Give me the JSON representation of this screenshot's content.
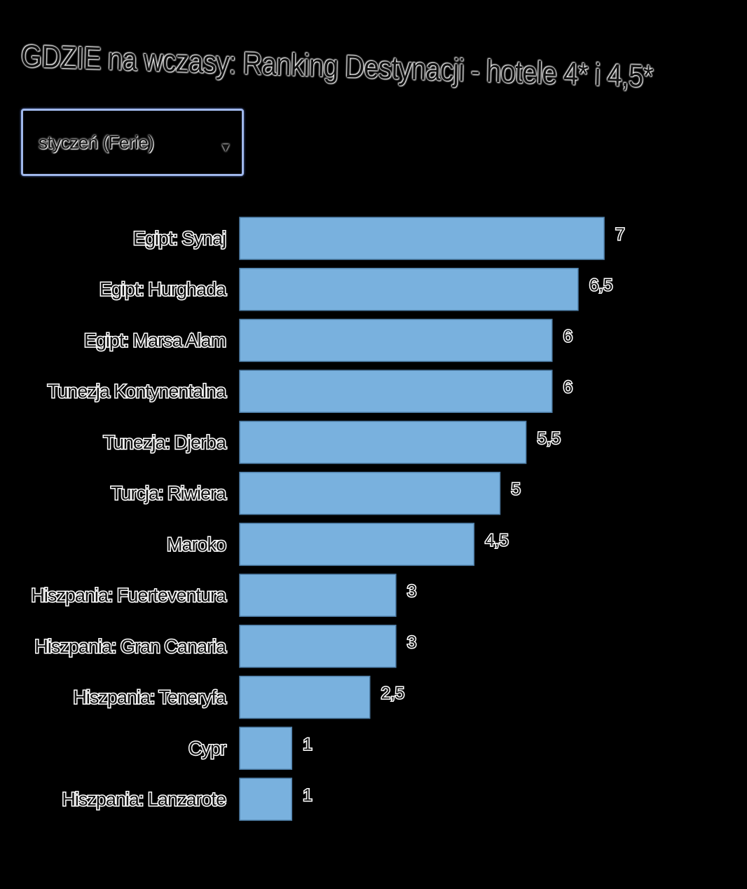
{
  "chart_data": {
    "type": "bar",
    "orientation": "horizontal",
    "title": "GDZIE na wczasy: Ranking Destynacji - hotele 4* i 4,5*",
    "categories": [
      "Egipt: Synaj",
      "Egipt: Hurghada",
      "Egipt: Marsa Alam",
      "Tunezja Kontynentalna",
      "Tunezja: Djerba",
      "Turcja: Riwiera",
      "Maroko",
      "Hiszpania: Fuerteventura",
      "Hiszpania: Gran Canaria",
      "Hiszpania: Teneryfa",
      "Cypr",
      "Hiszpania: Lanzarote"
    ],
    "values": [
      7,
      6.5,
      6,
      6,
      5.5,
      5,
      4.5,
      3,
      3,
      2.5,
      1,
      1
    ],
    "value_labels": [
      "7",
      "6,5",
      "6",
      "6",
      "5,5",
      "5",
      "4,5",
      "3",
      "3",
      "2,5",
      "1",
      "1"
    ],
    "xlim": [
      0,
      7
    ],
    "grid": false,
    "legend": "none",
    "bar_color": "#79b1de",
    "background_color": "#000000"
  },
  "filter": {
    "selected": "styczeń (Ferie)",
    "caret_glyph": "▼",
    "accent_color": "#9fb7ea"
  }
}
